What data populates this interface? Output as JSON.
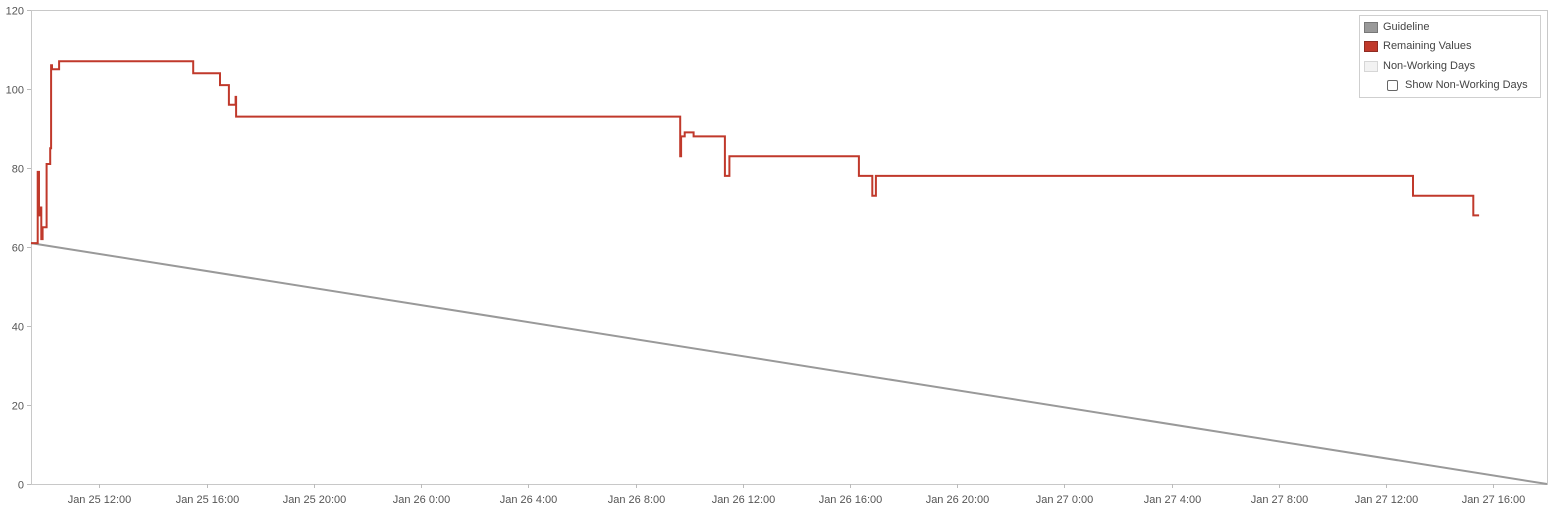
{
  "chart_data": {
    "type": "line",
    "title": "",
    "xlabel": "",
    "ylabel": "",
    "ylim": [
      0,
      120
    ],
    "yticks": [
      0,
      20,
      40,
      60,
      80,
      100,
      120
    ],
    "xlim": [
      "2025-01-25T09:27",
      "2025-01-27T18:00"
    ],
    "xticks": [
      {
        "t": "2025-01-25T12:00",
        "label": "Jan 25 12:00"
      },
      {
        "t": "2025-01-25T16:00",
        "label": "Jan 25 16:00"
      },
      {
        "t": "2025-01-25T20:00",
        "label": "Jan 25 20:00"
      },
      {
        "t": "2025-01-26T00:00",
        "label": "Jan 26 0:00"
      },
      {
        "t": "2025-01-26T04:00",
        "label": "Jan 26 4:00"
      },
      {
        "t": "2025-01-26T08:00",
        "label": "Jan 26 8:00"
      },
      {
        "t": "2025-01-26T12:00",
        "label": "Jan 26 12:00"
      },
      {
        "t": "2025-01-26T16:00",
        "label": "Jan 26 16:00"
      },
      {
        "t": "2025-01-26T20:00",
        "label": "Jan 26 20:00"
      },
      {
        "t": "2025-01-27T00:00",
        "label": "Jan 27 0:00"
      },
      {
        "t": "2025-01-27T04:00",
        "label": "Jan 27 4:00"
      },
      {
        "t": "2025-01-27T08:00",
        "label": "Jan 27 8:00"
      },
      {
        "t": "2025-01-27T12:00",
        "label": "Jan 27 12:00"
      },
      {
        "t": "2025-01-27T16:00",
        "label": "Jan 27 16:00"
      }
    ],
    "grid": false,
    "legend_position": "top-right",
    "series": [
      {
        "name": "Guideline",
        "color": "#999999",
        "step": false,
        "points": [
          {
            "t": "2025-01-25T09:27",
            "y": 61
          },
          {
            "t": "2025-01-27T18:00",
            "y": 0
          }
        ]
      },
      {
        "name": "Remaining Values",
        "color": "#c0392b",
        "step": true,
        "points": [
          {
            "t": "2025-01-25T09:27",
            "y": 61
          },
          {
            "t": "2025-01-25T09:37",
            "y": 61
          },
          {
            "t": "2025-01-25T09:42",
            "y": 79
          },
          {
            "t": "2025-01-25T09:45",
            "y": 68
          },
          {
            "t": "2025-01-25T09:48",
            "y": 70
          },
          {
            "t": "2025-01-25T09:50",
            "y": 62
          },
          {
            "t": "2025-01-25T09:53",
            "y": 65
          },
          {
            "t": "2025-01-25T10:02",
            "y": 81
          },
          {
            "t": "2025-01-25T10:10",
            "y": 85
          },
          {
            "t": "2025-01-25T10:12",
            "y": 106
          },
          {
            "t": "2025-01-25T10:14",
            "y": 105
          },
          {
            "t": "2025-01-25T10:30",
            "y": 107
          },
          {
            "t": "2025-01-25T15:30",
            "y": 104
          },
          {
            "t": "2025-01-25T16:30",
            "y": 101
          },
          {
            "t": "2025-01-25T16:50",
            "y": 96
          },
          {
            "t": "2025-01-25T17:05",
            "y": 98
          },
          {
            "t": "2025-01-25T17:06",
            "y": 93
          },
          {
            "t": "2025-01-26T09:40",
            "y": 83
          },
          {
            "t": "2025-01-26T09:42",
            "y": 88
          },
          {
            "t": "2025-01-26T09:50",
            "y": 89
          },
          {
            "t": "2025-01-26T10:10",
            "y": 88
          },
          {
            "t": "2025-01-26T11:20",
            "y": 78
          },
          {
            "t": "2025-01-26T11:30",
            "y": 83
          },
          {
            "t": "2025-01-26T16:20",
            "y": 78
          },
          {
            "t": "2025-01-26T16:50",
            "y": 73
          },
          {
            "t": "2025-01-26T16:58",
            "y": 78
          },
          {
            "t": "2025-01-27T13:00",
            "y": 73
          },
          {
            "t": "2025-01-27T15:15",
            "y": 68
          },
          {
            "t": "2025-01-27T15:28",
            "y": 68
          }
        ]
      }
    ]
  },
  "legend": {
    "items": [
      {
        "label": "Guideline",
        "swatch": "#999999",
        "border": "#777777"
      },
      {
        "label": "Remaining Values",
        "swatch": "#c0392b",
        "border": "#8e2b22"
      },
      {
        "label": "Non-Working Days",
        "swatch": "#f2f2f2",
        "border": "#d6d6d6"
      }
    ],
    "toggle_label": "Show Non-Working Days",
    "toggle_checked": false
  }
}
